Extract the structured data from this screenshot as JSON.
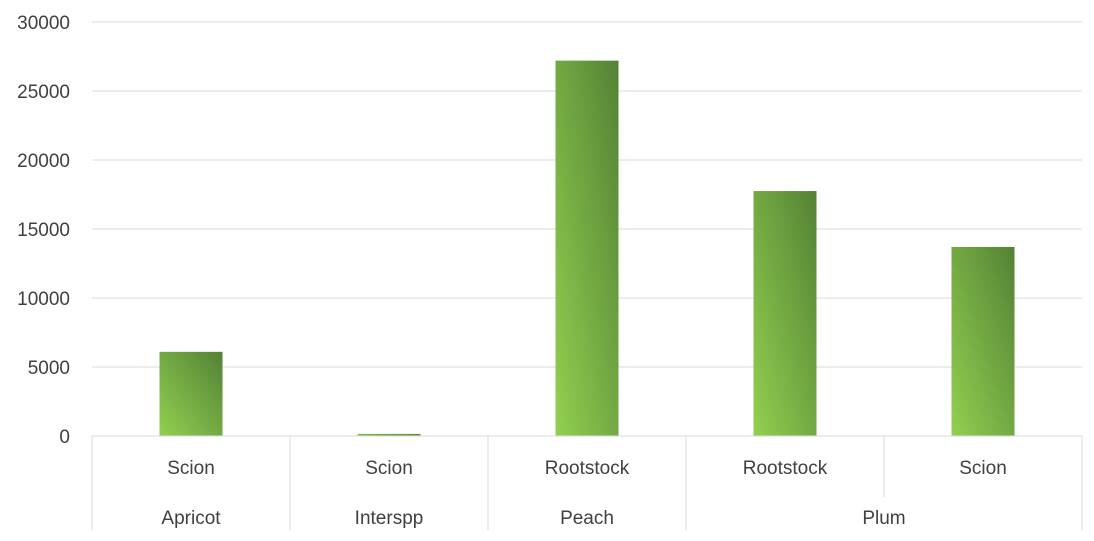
{
  "chart_data": {
    "type": "bar",
    "categories": [
      {
        "group": "Apricot",
        "label": "Scion"
      },
      {
        "group": "Interspp",
        "label": "Scion"
      },
      {
        "group": "Peach",
        "label": "Rootstock"
      },
      {
        "group": "Plum",
        "label": "Rootstock"
      },
      {
        "group": "Plum",
        "label": "Scion"
      }
    ],
    "groups": [
      "Apricot",
      "Interspp",
      "Peach",
      "Plum"
    ],
    "values": [
      6100,
      150,
      27200,
      17750,
      13700
    ],
    "ylim": [
      0,
      30000
    ],
    "yticks": [
      "0",
      "5000",
      "10000",
      "15000",
      "20000",
      "25000",
      "30000"
    ],
    "title": "",
    "xlabel": "",
    "ylabel": "",
    "grid": true,
    "legend": "none",
    "colors": {
      "bar_light": "#92d050",
      "bar_dark": "#548235",
      "grid": "#d9d9d9",
      "text": "#404040"
    }
  }
}
